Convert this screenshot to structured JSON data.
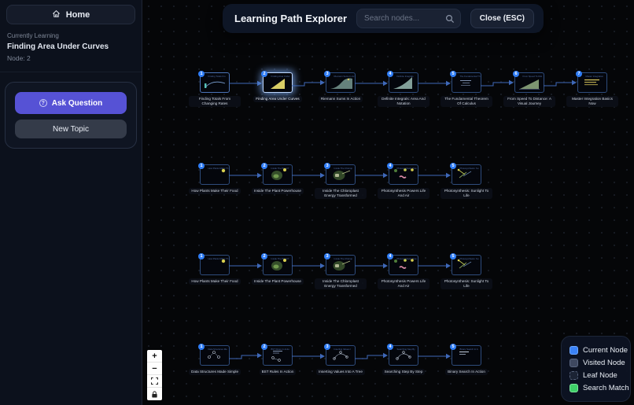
{
  "sidebar": {
    "home_label": "Home",
    "currently_learning_label": "Currently Learning",
    "topic_title": "Finding Area Under Curves",
    "node_indicator": "Node: 2",
    "ask_question_label": "Ask Question",
    "new_topic_label": "New Topic"
  },
  "topbar": {
    "title": "Learning Path Explorer",
    "search_placeholder": "Search nodes...",
    "search_value": "",
    "close_label": "Close (ESC)"
  },
  "colors": {
    "accent": "#5652d5",
    "edge": "#3e68b8",
    "current_glow": "#82b2ff"
  },
  "graph": {
    "rows": [
      {
        "nodes": [
          {
            "num": "1",
            "label": "Finding Totals From Changing Rates",
            "thumb": "curve",
            "state": "visited"
          },
          {
            "num": "2",
            "label": "Finding Area Under Curves",
            "thumb": "area-triangle",
            "state": "current"
          },
          {
            "num": "3",
            "label": "Riemann Sums In Action",
            "thumb": "riemann",
            "state": "default"
          },
          {
            "num": "4",
            "label": "Definite Integrals: Area And Notation",
            "thumb": "area-fill",
            "state": "default"
          },
          {
            "num": "5",
            "label": "The Fundamental Theorem Of Calculus",
            "thumb": "formula",
            "state": "default"
          },
          {
            "num": "6",
            "label": "From Speed To Distance: A Visual Journey",
            "thumb": "ramp",
            "state": "default"
          },
          {
            "num": "7",
            "label": "Master Integration Basics Now",
            "thumb": "notes",
            "state": "default"
          }
        ],
        "stepped_edges": [
          1,
          4,
          5
        ]
      },
      {
        "nodes": [
          {
            "num": "1",
            "label": "How Plants Make Their Food",
            "thumb": "sun-dot",
            "state": "default"
          },
          {
            "num": "2",
            "label": "Inside The Plant Powerhouse",
            "thumb": "cell",
            "state": "default"
          },
          {
            "num": "3",
            "label": "Inside The Chloroplast Energy Transformed",
            "thumb": "chloroplast",
            "state": "default"
          },
          {
            "num": "4",
            "label": "Photosynthesis Powers Life And Air",
            "thumb": "molecules",
            "state": "default"
          },
          {
            "num": "5",
            "label": "Photosynthesis: Sunlight To Life",
            "thumb": "flow",
            "state": "default"
          }
        ],
        "stepped_edges": []
      },
      {
        "nodes": [
          {
            "num": "1",
            "label": "How Plants Make Their Food",
            "thumb": "sun-dot",
            "state": "default"
          },
          {
            "num": "2",
            "label": "Inside The Plant Powerhouse",
            "thumb": "cell",
            "state": "default"
          },
          {
            "num": "3",
            "label": "Inside The Chloroplast Energy Transformed",
            "thumb": "chloroplast",
            "state": "default"
          },
          {
            "num": "4",
            "label": "Photosynthesis Powers Life And Air",
            "thumb": "molecules",
            "state": "default"
          },
          {
            "num": "5",
            "label": "Photosynthesis: Sunlight To Life",
            "thumb": "flow",
            "state": "default"
          }
        ],
        "stepped_edges": []
      },
      {
        "nodes": [
          {
            "num": "1",
            "label": "Data Structures Made Simple",
            "thumb": "tree",
            "state": "default"
          },
          {
            "num": "2",
            "label": "BST Rules In Action",
            "thumb": "tree-notes",
            "state": "default"
          },
          {
            "num": "3",
            "label": "Inserting Values Into A Tree",
            "thumb": "tree-arc",
            "state": "default"
          },
          {
            "num": "4",
            "label": "Searching Step By Step",
            "thumb": "tree-arc",
            "state": "default"
          },
          {
            "num": "5",
            "label": "Binary Search In Action",
            "thumb": "text-lines",
            "state": "default"
          }
        ],
        "stepped_edges": [
          0,
          2
        ]
      }
    ]
  },
  "legend": {
    "items": [
      {
        "label": "Current Node",
        "color": "#3b82f6",
        "border": "#6ea8ff",
        "style": "solid"
      },
      {
        "label": "Visited Node",
        "color": "#3e4860",
        "border": "#5a6680",
        "style": "solid"
      },
      {
        "label": "Leaf Node",
        "color": "#1b2334",
        "border": "#55617a",
        "style": "dashed"
      },
      {
        "label": "Search Match",
        "color": "#3fd068",
        "border": "#7ce69c",
        "style": "solid"
      }
    ]
  },
  "controls": {
    "items": [
      {
        "icon": "zoom-in-icon"
      },
      {
        "icon": "zoom-out-icon"
      },
      {
        "icon": "fit-view-icon"
      },
      {
        "icon": "lock-icon"
      }
    ]
  }
}
